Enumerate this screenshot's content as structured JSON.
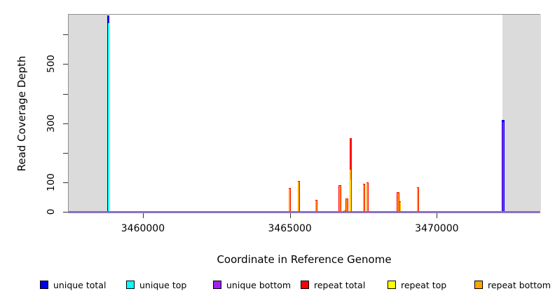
{
  "chart_data": {
    "type": "bar",
    "title": "",
    "xlabel": "Coordinate in Reference Genome",
    "ylabel": "Read Coverage Depth",
    "xlim": [
      3457450,
      3473520
    ],
    "ylim": [
      0,
      670
    ],
    "grid": false,
    "legend_position": "bottom",
    "x_ticks": [
      {
        "value": 3460000,
        "label": "3460000"
      },
      {
        "value": 3465000,
        "label": "3465000"
      },
      {
        "value": 3470000,
        "label": "3470000"
      }
    ],
    "y_ticks": [
      {
        "value": 0,
        "label": "0"
      },
      {
        "value": 100,
        "label": "100"
      },
      {
        "value": 200,
        "label": ""
      },
      {
        "value": 300,
        "label": "300"
      },
      {
        "value": 400,
        "label": ""
      },
      {
        "value": 500,
        "label": "500"
      },
      {
        "value": 600,
        "label": ""
      }
    ],
    "shaded_regions": [
      {
        "from": 3457450,
        "to": 3458780,
        "color": "#dbdbdb"
      },
      {
        "from": 3472210,
        "to": 3473520,
        "color": "#dbdbdb"
      }
    ],
    "legend": [
      {
        "label": "unique total",
        "color": "#0000ee"
      },
      {
        "label": "unique top",
        "color": "#00ffff"
      },
      {
        "label": "unique bottom",
        "color": "#a020f0"
      },
      {
        "label": "repeat total",
        "color": "#ff0000"
      },
      {
        "label": "repeat top",
        "color": "#ffff00"
      },
      {
        "label": "repeat bottom",
        "color": "#ffa500"
      }
    ],
    "spikes": [
      {
        "x": 3458800,
        "segments": [
          {
            "series": "unique total",
            "value": 668
          },
          {
            "series": "unique top",
            "value": 640
          }
        ]
      },
      {
        "x": 3464970,
        "segments": [
          {
            "series": "repeat total",
            "value": 83
          },
          {
            "series": "repeat bottom",
            "value": 81
          }
        ]
      },
      {
        "x": 3465280,
        "segments": [
          {
            "series": "repeat total",
            "value": 106
          },
          {
            "series": "repeat bottom",
            "value": 104
          }
        ]
      },
      {
        "x": 3465875,
        "segments": [
          {
            "series": "repeat total",
            "value": 42
          },
          {
            "series": "repeat bottom",
            "value": 41
          }
        ]
      },
      {
        "x": 3466675,
        "segments": [
          {
            "series": "repeat total",
            "value": 92
          },
          {
            "series": "repeat bottom",
            "value": 91
          }
        ]
      },
      {
        "x": 3466830,
        "segments": [
          {
            "series": "repeat total",
            "value": 7
          },
          {
            "series": "repeat bottom",
            "value": 6
          }
        ]
      },
      {
        "x": 3466910,
        "segments": [
          {
            "series": "repeat total",
            "value": 47
          },
          {
            "series": "repeat bottom",
            "value": 46
          }
        ]
      },
      {
        "x": 3467045,
        "segments": [
          {
            "series": "repeat total",
            "value": 252
          },
          {
            "series": "repeat bottom",
            "value": 146
          },
          {
            "series": "repeat top",
            "value": 112
          }
        ]
      },
      {
        "x": 3467495,
        "segments": [
          {
            "series": "repeat total",
            "value": 98
          },
          {
            "series": "repeat bottom",
            "value": 96
          }
        ]
      },
      {
        "x": 3467615,
        "segments": [
          {
            "series": "repeat total",
            "value": 101
          },
          {
            "series": "repeat bottom",
            "value": 99
          }
        ]
      },
      {
        "x": 3468660,
        "segments": [
          {
            "series": "repeat total",
            "value": 68
          },
          {
            "series": "repeat bottom",
            "value": 67
          }
        ]
      },
      {
        "x": 3468720,
        "segments": [
          {
            "series": "repeat total",
            "value": 37
          },
          {
            "series": "repeat bottom",
            "value": 36
          }
        ]
      },
      {
        "x": 3469330,
        "segments": [
          {
            "series": "repeat total",
            "value": 85
          },
          {
            "series": "repeat bottom",
            "value": 83
          }
        ]
      },
      {
        "x": 3472235,
        "segments": [
          {
            "series": "unique total",
            "value": 313
          },
          {
            "series": "unique bottom",
            "value": 306
          }
        ]
      }
    ]
  }
}
